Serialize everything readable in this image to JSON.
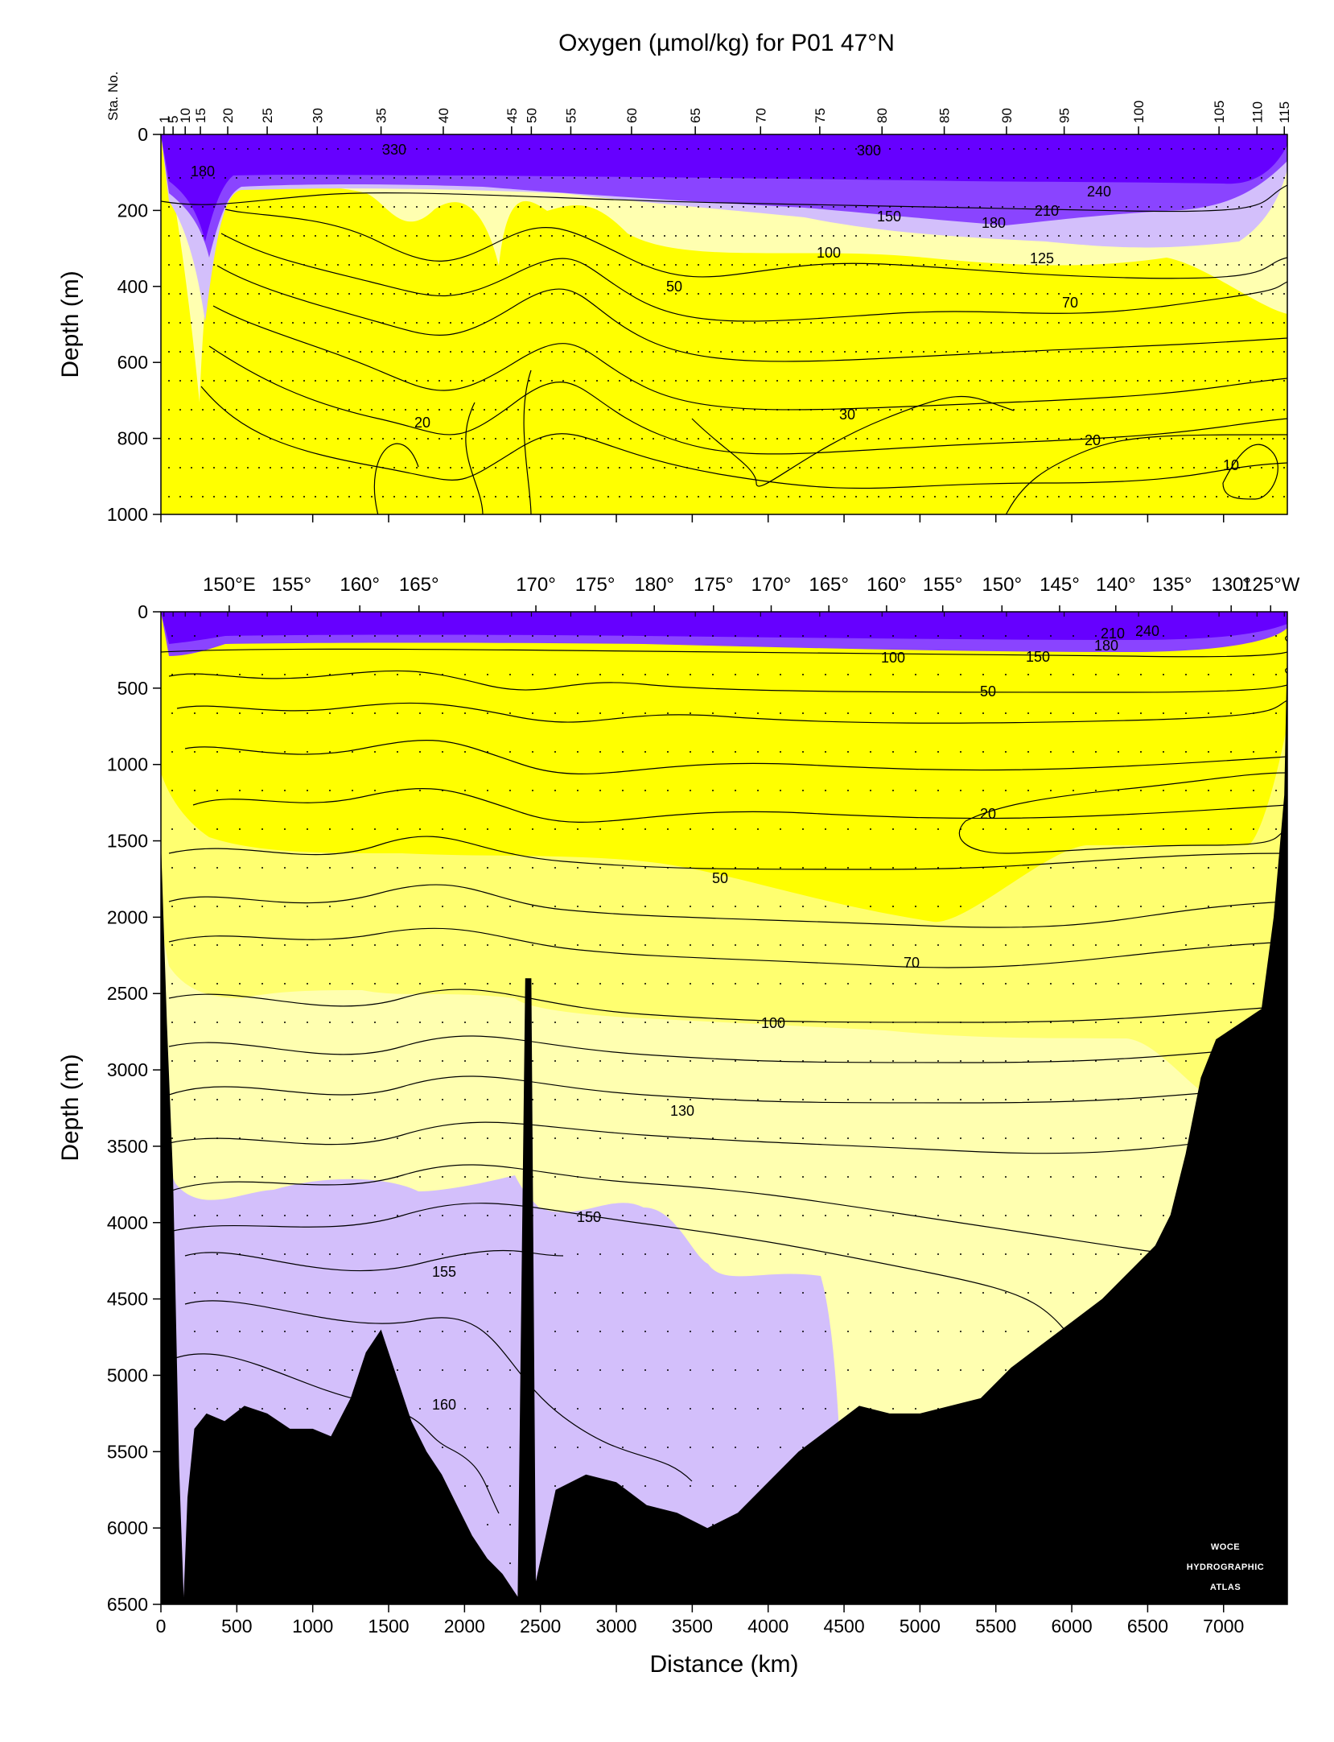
{
  "chart_data": [
    {
      "type": "heatmap",
      "title": "Oxygen (µmol/kg) for P01 47°N",
      "panel": "upper",
      "ylabel": "Depth (m)",
      "ylim": [
        1000,
        0
      ],
      "xlim": [
        0,
        7420
      ],
      "yticks": [
        "0",
        "200",
        "400",
        "600",
        "800",
        "1000"
      ],
      "station_axis_label": "Sta. No.",
      "stations": [
        "1",
        "5",
        "10",
        "15",
        "20",
        "25",
        "30",
        "35",
        "40",
        "45",
        "50",
        "55",
        "60",
        "65",
        "70",
        "75",
        "80",
        "85",
        "90",
        "95",
        "100",
        "105",
        "110",
        "115"
      ],
      "station_distance_km": [
        20,
        80,
        160,
        260,
        440,
        700,
        1030,
        1450,
        1860,
        2310,
        2440,
        2700,
        3100,
        3520,
        3950,
        4340,
        4750,
        5160,
        5570,
        5950,
        6440,
        6970,
        7220,
        7400
      ],
      "colors": {
        "purple": "#6600ff",
        "mid_purple": "#8a44ff",
        "light_purple": "#d3bffb",
        "pale_yellow": "#ffffb0",
        "mid_yellow": "#ffff70",
        "yellow": "#ffff00",
        "bathymetry": "#000000"
      },
      "contour_labels": [
        "330",
        "300",
        "180",
        "240",
        "210",
        "150",
        "180",
        "100",
        "125",
        "50",
        "70",
        "30",
        "20",
        "20",
        "10"
      ]
    },
    {
      "type": "heatmap",
      "panel": "lower",
      "xlabel": "Distance (km)",
      "ylabel": "Depth (m)",
      "xlim": [
        0,
        7420
      ],
      "ylim": [
        6500,
        0
      ],
      "xticks": [
        "0",
        "500",
        "1000",
        "1500",
        "2000",
        "2500",
        "3000",
        "3500",
        "4000",
        "4500",
        "5000",
        "5500",
        "6000",
        "6500",
        "7000"
      ],
      "yticks": [
        "0",
        "500",
        "1000",
        "1500",
        "2000",
        "2500",
        "3000",
        "3500",
        "4000",
        "4500",
        "5000",
        "5500",
        "6000",
        "6500"
      ],
      "longitudes": [
        "150°E",
        "155°",
        "160°",
        "165°",
        "170°",
        "175°",
        "180°",
        "175°",
        "170°",
        "165°",
        "160°",
        "155°",
        "150°",
        "145°",
        "140°",
        "135°",
        "130°",
        "125°W"
      ],
      "longitude_distance_km": [
        450,
        860,
        1310,
        1700,
        2470,
        2860,
        3250,
        3640,
        4020,
        4400,
        4780,
        5150,
        5540,
        5920,
        6290,
        6660,
        7050,
        7310
      ],
      "contour_labels": [
        "210",
        "240",
        "180",
        "150",
        "100",
        "50",
        "20",
        "50",
        "70",
        "100",
        "130",
        "150",
        "155",
        "160"
      ],
      "bathymetry_depth_m": [
        [
          0,
          1500
        ],
        [
          40,
          2700
        ],
        [
          80,
          3700
        ],
        [
          120,
          5600
        ],
        [
          150,
          6450
        ],
        [
          175,
          5800
        ],
        [
          220,
          5350
        ],
        [
          300,
          5250
        ],
        [
          420,
          5300
        ],
        [
          550,
          5200
        ],
        [
          700,
          5250
        ],
        [
          850,
          5350
        ],
        [
          1000,
          5350
        ],
        [
          1120,
          5400
        ],
        [
          1250,
          5150
        ],
        [
          1350,
          4850
        ],
        [
          1450,
          4700
        ],
        [
          1550,
          5000
        ],
        [
          1650,
          5300
        ],
        [
          1750,
          5500
        ],
        [
          1850,
          5650
        ],
        [
          1950,
          5850
        ],
        [
          2050,
          6050
        ],
        [
          2150,
          6200
        ],
        [
          2250,
          6300
        ],
        [
          2350,
          6450
        ],
        [
          2400,
          2400
        ],
        [
          2440,
          2400
        ],
        [
          2470,
          6350
        ],
        [
          2600,
          5750
        ],
        [
          2800,
          5650
        ],
        [
          3000,
          5700
        ],
        [
          3200,
          5850
        ],
        [
          3400,
          5900
        ],
        [
          3600,
          6000
        ],
        [
          3800,
          5900
        ],
        [
          4000,
          5700
        ],
        [
          4200,
          5500
        ],
        [
          4400,
          5350
        ],
        [
          4600,
          5200
        ],
        [
          4800,
          5250
        ],
        [
          5000,
          5250
        ],
        [
          5200,
          5200
        ],
        [
          5400,
          5150
        ],
        [
          5600,
          4950
        ],
        [
          5800,
          4800
        ],
        [
          6000,
          4650
        ],
        [
          6200,
          4500
        ],
        [
          6400,
          4300
        ],
        [
          6550,
          4150
        ],
        [
          6650,
          3950
        ],
        [
          6750,
          3550
        ],
        [
          6850,
          3050
        ],
        [
          6950,
          2800
        ],
        [
          7100,
          2700
        ],
        [
          7250,
          2600
        ],
        [
          7330,
          2000
        ],
        [
          7400,
          1200
        ],
        [
          7420,
          200
        ]
      ],
      "atlas_stamp": [
        "WOCE",
        "HYDROGRAPHIC",
        "ATLAS"
      ]
    }
  ]
}
